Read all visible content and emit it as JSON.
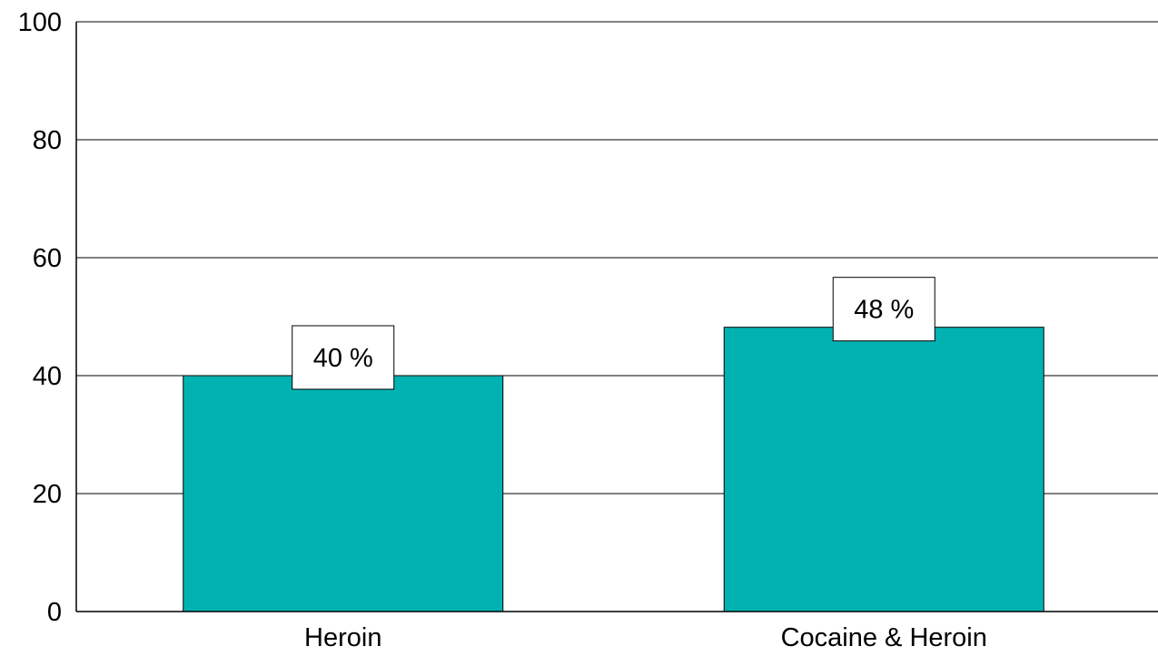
{
  "chart_data": {
    "type": "bar",
    "categories": [
      "Heroin",
      "Cocaine & Heroin"
    ],
    "values": [
      40,
      48.2
    ],
    "data_labels": [
      "40 %",
      "48 %"
    ],
    "title": "",
    "xlabel": "",
    "ylabel": "",
    "ylim": [
      0,
      100
    ],
    "yticks": [
      0,
      20,
      40,
      60,
      80,
      100
    ],
    "ytick_labels": [
      "0",
      "20",
      "40",
      "60",
      "80",
      "100"
    ],
    "grid": true,
    "legend": "none",
    "colors": {
      "bar": "#00B2B2",
      "bar_edge": "#000000",
      "grid": "#000000",
      "label_box": "#FFFFFF"
    }
  }
}
